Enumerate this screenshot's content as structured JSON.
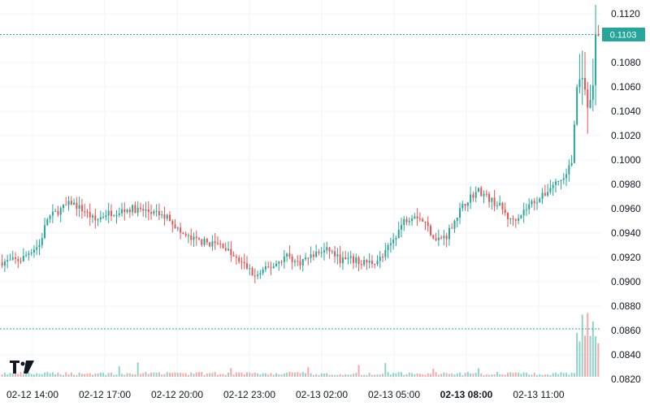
{
  "chart_data": {
    "type": "candlestick",
    "y_ticks": [
      "0.1120",
      "0.1080",
      "0.1060",
      "0.1040",
      "0.1020",
      "0.1000",
      "0.0980",
      "0.0960",
      "0.0940",
      "0.0920",
      "0.0900",
      "0.0880",
      "0.0860",
      "0.0840",
      "0.0820"
    ],
    "x_ticks": [
      {
        "label": "02-12 14:00",
        "bold": false
      },
      {
        "label": "02-12 17:00",
        "bold": false
      },
      {
        "label": "02-12 20:00",
        "bold": false
      },
      {
        "label": "02-12 23:00",
        "bold": false
      },
      {
        "label": "02-13 02:00",
        "bold": false
      },
      {
        "label": "02-13 05:00",
        "bold": false
      },
      {
        "label": "02-13 08:00",
        "bold": true
      },
      {
        "label": "02-13 11:00",
        "bold": false
      }
    ],
    "last_price": "0.1103",
    "ylim": [
      0.082,
      0.112
    ],
    "colors": {
      "up": "#26a69a",
      "down": "#ef5350",
      "grid": "#f0f3fa",
      "price_line": "#26a69a"
    },
    "logo_icon": "tradingview-logo-icon",
    "anchors": [
      [
        0,
        0.0916
      ],
      [
        8,
        0.0918
      ],
      [
        12,
        0.0926
      ],
      [
        15,
        0.093
      ],
      [
        18,
        0.0952
      ],
      [
        22,
        0.0958
      ],
      [
        27,
        0.0965
      ],
      [
        32,
        0.0958
      ],
      [
        36,
        0.095
      ],
      [
        40,
        0.0956
      ],
      [
        45,
        0.0958
      ],
      [
        50,
        0.096
      ],
      [
        55,
        0.0958
      ],
      [
        60,
        0.0955
      ],
      [
        64,
        0.0952
      ],
      [
        68,
        0.094
      ],
      [
        72,
        0.0935
      ],
      [
        78,
        0.0932
      ],
      [
        84,
        0.093
      ],
      [
        88,
        0.092
      ],
      [
        93,
        0.0912
      ],
      [
        96,
        0.0904
      ],
      [
        100,
        0.091
      ],
      [
        104,
        0.0915
      ],
      [
        108,
        0.0922
      ],
      [
        112,
        0.0915
      ],
      [
        116,
        0.092
      ],
      [
        120,
        0.0924
      ],
      [
        124,
        0.0926
      ],
      [
        128,
        0.0918
      ],
      [
        132,
        0.0918
      ],
      [
        136,
        0.0916
      ],
      [
        140,
        0.0916
      ],
      [
        144,
        0.092
      ],
      [
        148,
        0.0935
      ],
      [
        152,
        0.095
      ],
      [
        156,
        0.0956
      ],
      [
        160,
        0.0948
      ],
      [
        164,
        0.0934
      ],
      [
        168,
        0.0938
      ],
      [
        172,
        0.0955
      ],
      [
        176,
        0.0968
      ],
      [
        180,
        0.0975
      ],
      [
        184,
        0.0968
      ],
      [
        188,
        0.0962
      ],
      [
        192,
        0.095
      ],
      [
        196,
        0.0956
      ],
      [
        200,
        0.0965
      ],
      [
        204,
        0.097
      ],
      [
        208,
        0.098
      ],
      [
        212,
        0.0985
      ],
      [
        215,
        0.0998
      ],
      [
        217,
        0.106
      ],
      [
        219,
        0.107
      ],
      [
        221,
        0.104
      ],
      [
        223,
        0.106
      ],
      [
        224,
        0.1103
      ]
    ]
  }
}
